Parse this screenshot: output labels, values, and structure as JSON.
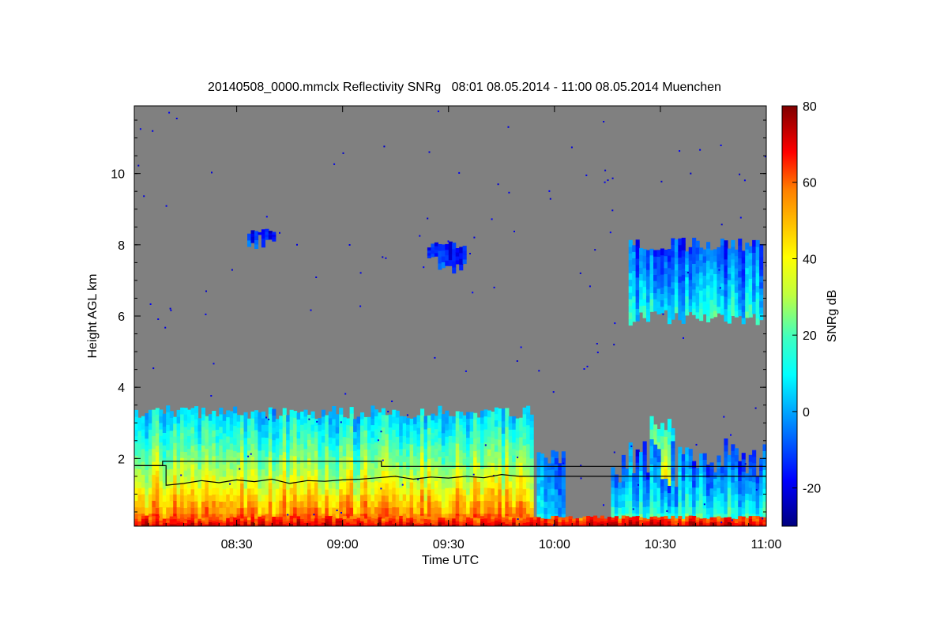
{
  "chart_data": {
    "type": "heatmap",
    "title": "20140508_0000.mmclx Reflectivity SNRg   08:01 08.05.2014 - 11:00 08.05.2014 Muenchen",
    "xlabel": "Time UTC",
    "ylabel": "Height AGL km",
    "colorbar_label": "SNRg dB",
    "x_range_minutes": [
      481,
      660
    ],
    "y_range_km": [
      0.1,
      11.9
    ],
    "color_range_db": [
      -30,
      80
    ],
    "x_ticks": [
      {
        "minute": 510,
        "label": "08:30"
      },
      {
        "minute": 540,
        "label": "09:00"
      },
      {
        "minute": 570,
        "label": "09:30"
      },
      {
        "minute": 600,
        "label": "10:00"
      },
      {
        "minute": 630,
        "label": "10:30"
      },
      {
        "minute": 660,
        "label": "11:00"
      }
    ],
    "y_ticks": [
      {
        "value": 2,
        "label": "2"
      },
      {
        "value": 4,
        "label": "4"
      },
      {
        "value": 6,
        "label": "6"
      },
      {
        "value": 8,
        "label": "8"
      },
      {
        "value": 10,
        "label": "10"
      }
    ],
    "colorbar_ticks": [
      {
        "value": -20,
        "label": "-20"
      },
      {
        "value": 0,
        "label": "0"
      },
      {
        "value": 20,
        "label": "20"
      },
      {
        "value": 40,
        "label": "40"
      },
      {
        "value": 60,
        "label": "60"
      },
      {
        "value": 80,
        "label": "80"
      }
    ],
    "background_color": "#808080",
    "boundary_layer_line": [
      [
        481,
        1.8
      ],
      [
        489,
        1.8
      ],
      [
        489,
        1.92
      ],
      [
        551,
        1.92
      ],
      [
        551,
        1.78
      ],
      [
        660,
        1.78
      ]
    ],
    "lower_line": [
      [
        481,
        1.8
      ],
      [
        490,
        1.8
      ],
      [
        490,
        1.25
      ],
      [
        495,
        1.3
      ],
      [
        500,
        1.38
      ],
      [
        505,
        1.32
      ],
      [
        510,
        1.4
      ],
      [
        515,
        1.35
      ],
      [
        520,
        1.42
      ],
      [
        525,
        1.3
      ],
      [
        530,
        1.38
      ],
      [
        535,
        1.36
      ],
      [
        540,
        1.4
      ],
      [
        545,
        1.42
      ],
      [
        550,
        1.46
      ],
      [
        555,
        1.5
      ],
      [
        560,
        1.42
      ],
      [
        565,
        1.48
      ],
      [
        570,
        1.45
      ],
      [
        575,
        1.5
      ],
      [
        580,
        1.46
      ],
      [
        585,
        1.55
      ],
      [
        590,
        1.5
      ],
      [
        591,
        1.5
      ],
      [
        600,
        1.5
      ],
      [
        600,
        1.5
      ],
      [
        660,
        1.5
      ]
    ],
    "echo_regions": [
      {
        "label": "boundary layer",
        "t0": 481,
        "t1": 594,
        "base_km": 0.1,
        "top_km": [
          3.1,
          3.5
        ],
        "core_db": 60,
        "edge_db": 5
      },
      {
        "label": "boundary layer fragment",
        "t0": 595,
        "t1": 603,
        "base_km": 0.1,
        "top_km": [
          1.8,
          2.3
        ],
        "core_db": 10,
        "edge_db": -5
      },
      {
        "label": "convective cell",
        "t0": 627,
        "t1": 634,
        "base_km": 0.1,
        "top_km": [
          2.8,
          3.2
        ],
        "core_db": 65,
        "edge_db": 10
      },
      {
        "label": "late boundary layer",
        "t0": 616,
        "t1": 660,
        "base_km": 0.1,
        "top_km": [
          1.2,
          2.6
        ],
        "core_db": 20,
        "edge_db": -10
      },
      {
        "label": "cirrus",
        "t0": 621,
        "t1": 659,
        "base_km": 5.7,
        "top_km": [
          7.8,
          8.2
        ],
        "core_db": 12,
        "edge_db": -10
      },
      {
        "label": "cirrus patch",
        "t0": 513,
        "t1": 521,
        "base_km": 7.8,
        "top_km": [
          8.3,
          8.5
        ],
        "core_db": -12,
        "edge_db": -15
      },
      {
        "label": "cirrus patch",
        "t0": 564,
        "t1": 575,
        "base_km": 7.2,
        "top_km": [
          7.9,
          8.1
        ],
        "core_db": -10,
        "edge_db": -15
      },
      {
        "label": "near-surface strong echo",
        "t0": 481,
        "t1": 660,
        "base_km": 0.1,
        "top_km": [
          0.3,
          0.4
        ],
        "core_db": 72,
        "edge_db": 55
      }
    ]
  }
}
